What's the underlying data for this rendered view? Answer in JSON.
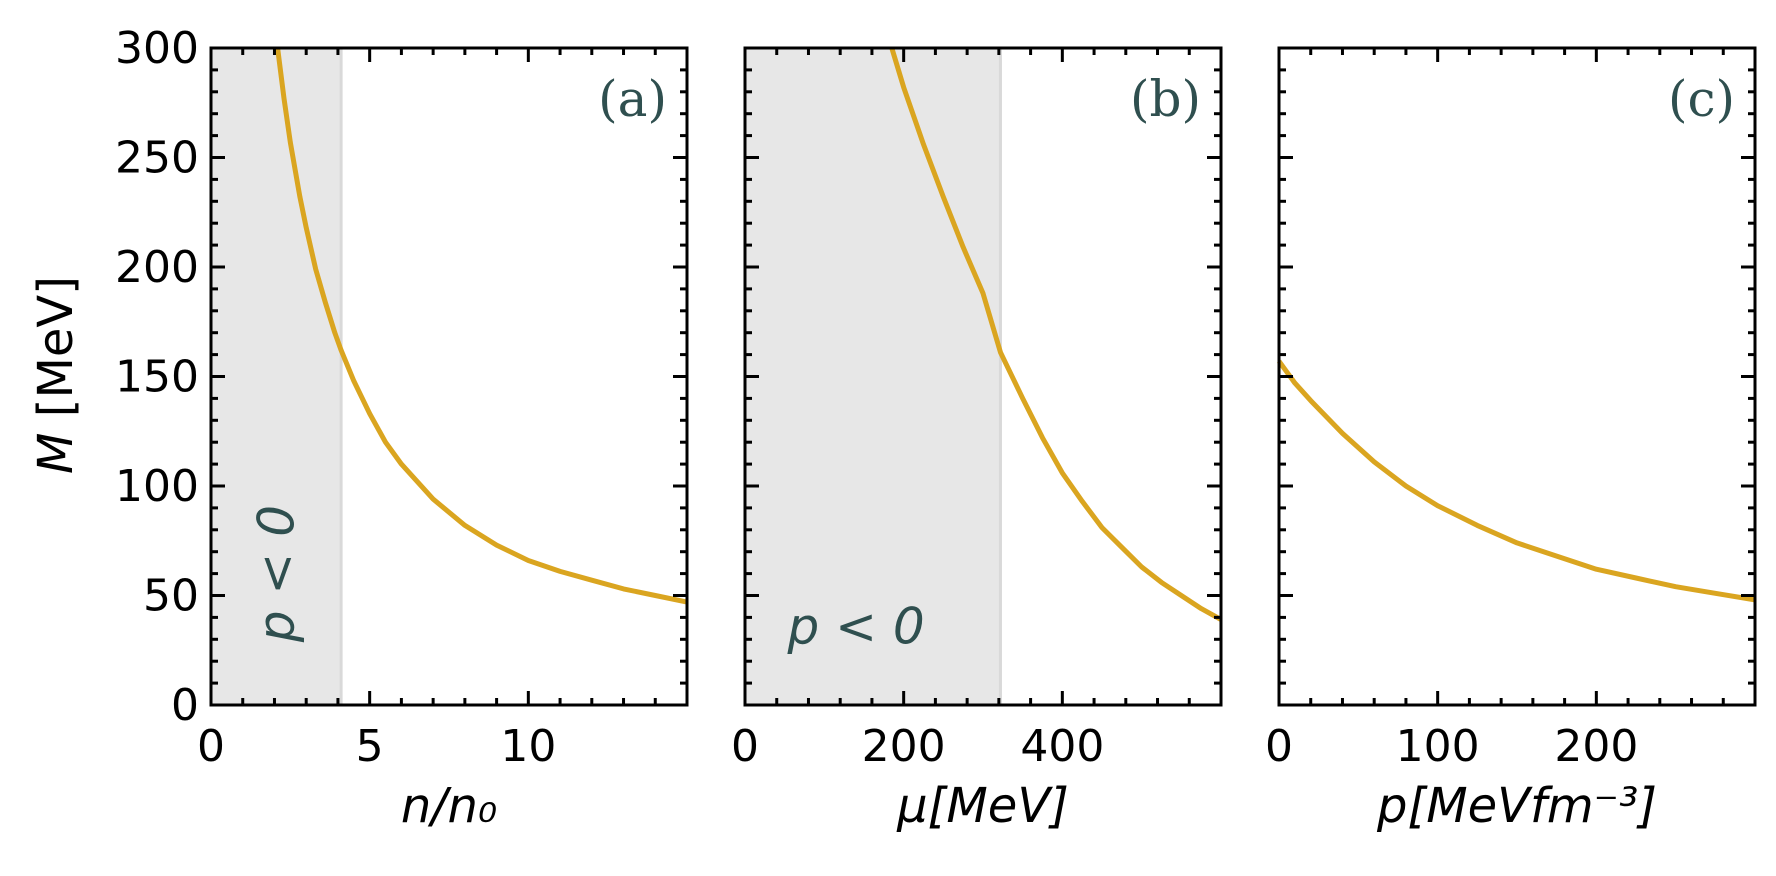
{
  "figure": {
    "ylabel_italic": "M",
    "ylabel_unit": " [MeV]",
    "colors": {
      "curve": "#DAA520",
      "shade": "#E7E7E7",
      "shade_edge": "#D9D9D9",
      "annotation": "#2F4F4F",
      "axis": "#000000"
    }
  },
  "chart_data": [
    {
      "type": "line",
      "panel_label": "(a)",
      "xlabel": "n/n₀",
      "ylabel": "M [MeV]",
      "xlim": [
        0,
        15
      ],
      "ylim": [
        0,
        300
      ],
      "xticks": [
        0,
        5,
        10
      ],
      "yticks": [
        0,
        50,
        100,
        150,
        200,
        250,
        300
      ],
      "shaded_region": {
        "x": [
          0,
          4.1
        ],
        "label": "p < 0"
      },
      "series": [
        {
          "name": "M",
          "x": [
            2.1,
            2.3,
            2.5,
            2.8,
            3.0,
            3.3,
            3.6,
            3.9,
            4.1,
            4.5,
            5.0,
            5.5,
            6.0,
            7.0,
            8.0,
            9.0,
            10.0,
            11.0,
            12.0,
            13.0,
            14.0,
            15.0
          ],
          "y": [
            300,
            277,
            257,
            232,
            218,
            199,
            184,
            170,
            162,
            148,
            133,
            120,
            110,
            94,
            82,
            73,
            66,
            61,
            57,
            53,
            50,
            47
          ]
        }
      ]
    },
    {
      "type": "line",
      "panel_label": "(b)",
      "xlabel": "μ[MeV]",
      "ylabel": "",
      "xlim": [
        0,
        600
      ],
      "ylim": [
        0,
        300
      ],
      "xticks": [
        0,
        200,
        400
      ],
      "yticks": [
        0,
        50,
        100,
        150,
        200,
        250,
        300
      ],
      "shaded_region": {
        "x": [
          0,
          322
        ],
        "label": "p < 0"
      },
      "series": [
        {
          "name": "M",
          "x": [
            185,
            200,
            225,
            250,
            275,
            300,
            322,
            350,
            375,
            400,
            425,
            450,
            475,
            500,
            525,
            550,
            575,
            600
          ],
          "y": [
            300,
            282,
            256,
            232,
            209,
            188,
            161,
            140,
            122,
            106,
            93,
            81,
            72,
            63,
            56,
            50,
            44,
            39
          ]
        }
      ]
    },
    {
      "type": "line",
      "panel_label": "(c)",
      "xlabel": "p[MeVfm⁻³]",
      "ylabel": "",
      "xlim": [
        0,
        300
      ],
      "ylim": [
        0,
        300
      ],
      "xticks": [
        0,
        100,
        200
      ],
      "yticks": [
        0,
        50,
        100,
        150,
        200,
        250,
        300
      ],
      "shaded_region": null,
      "series": [
        {
          "name": "M",
          "x": [
            0,
            10,
            20,
            40,
            60,
            80,
            100,
            125,
            150,
            175,
            200,
            225,
            250,
            275,
            300
          ],
          "y": [
            157,
            147,
            139,
            124,
            111,
            100,
            91,
            82,
            74,
            68,
            62,
            58,
            54,
            51,
            48
          ]
        }
      ]
    }
  ]
}
